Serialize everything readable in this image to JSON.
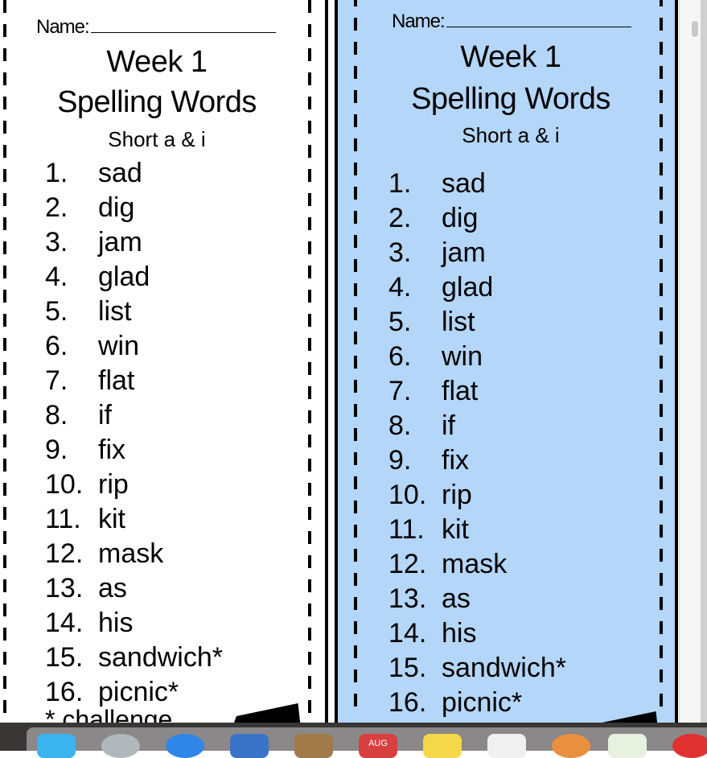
{
  "sheet": {
    "name_label": "Name:",
    "title": "Week 1",
    "subtitle": "Spelling Words",
    "topic": "Short a & i",
    "words": [
      {
        "num": "1.",
        "word": "sad"
      },
      {
        "num": "2.",
        "word": "dig"
      },
      {
        "num": "3.",
        "word": "jam"
      },
      {
        "num": "4.",
        "word": "glad"
      },
      {
        "num": "5.",
        "word": "list"
      },
      {
        "num": "6.",
        "word": "win"
      },
      {
        "num": "7.",
        "word": "flat"
      },
      {
        "num": "8.",
        "word": "if"
      },
      {
        "num": "9.",
        "word": "fix"
      },
      {
        "num": "10.",
        "word": "rip"
      },
      {
        "num": "11.",
        "word": "kit"
      },
      {
        "num": "12.",
        "word": "mask"
      },
      {
        "num": "13.",
        "word": "as"
      },
      {
        "num": "14.",
        "word": "his"
      },
      {
        "num": "15.",
        "word": "sandwich*"
      },
      {
        "num": "16.",
        "word": "picnic*"
      }
    ],
    "footnote": "* challenge"
  },
  "colors": {
    "left_bg": "#ffffff",
    "right_bg": "#b4d6f8"
  },
  "dock": {
    "calendar_month": "AUG"
  }
}
